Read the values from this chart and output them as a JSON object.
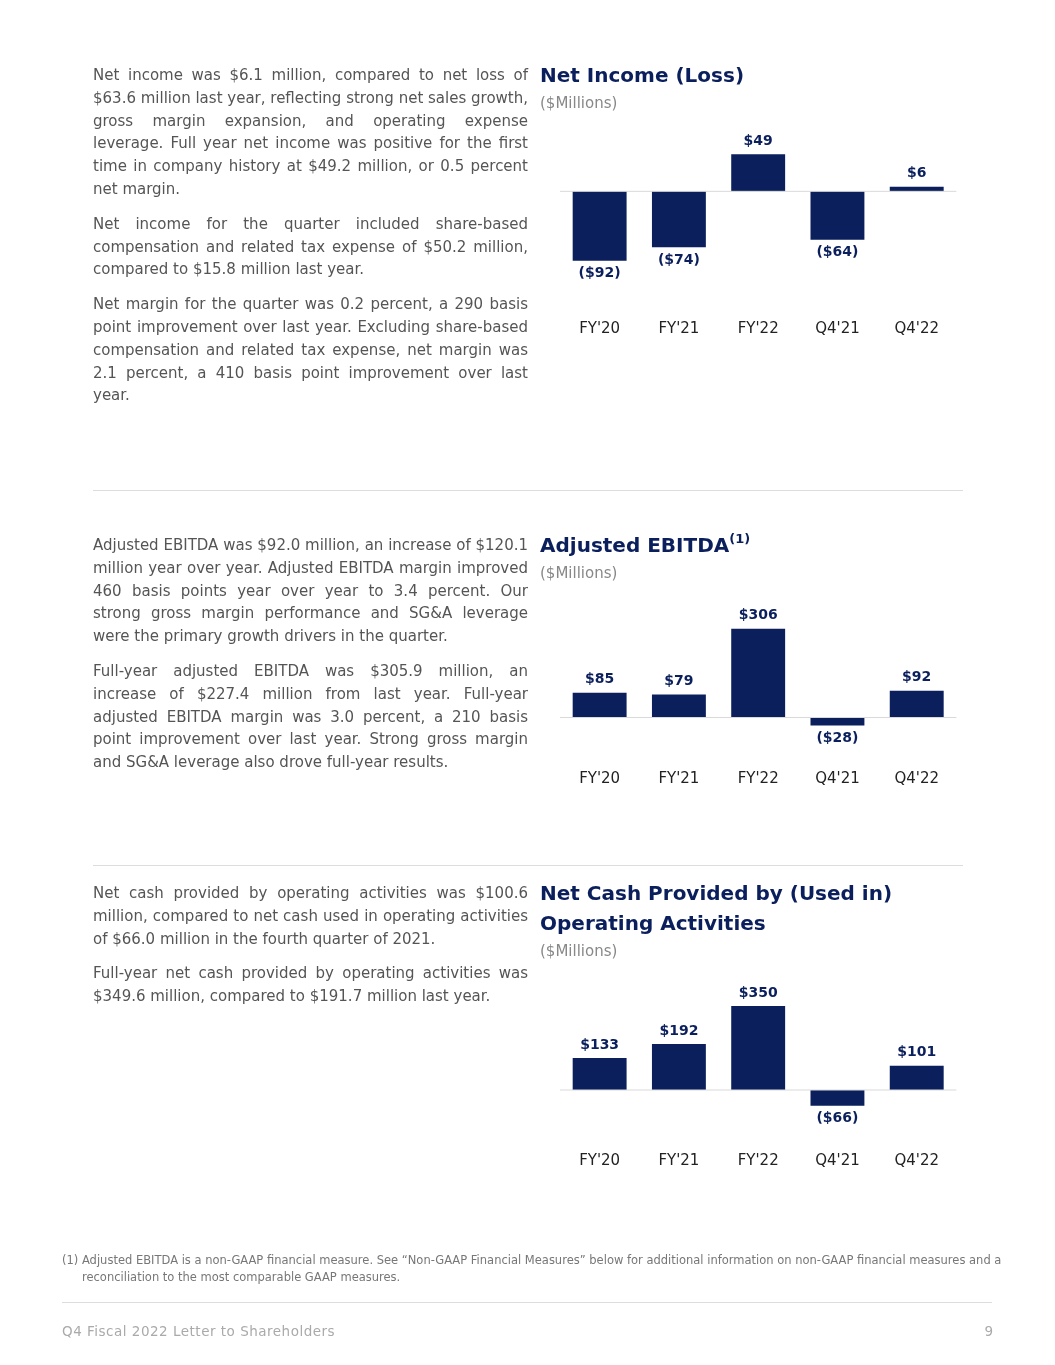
{
  "chart_data": [
    {
      "type": "bar",
      "title": "Net Income (Loss)",
      "subtitle": "($Millions)",
      "categories": [
        "FY'20",
        "FY'21",
        "FY'22",
        "Q4'21",
        "Q4'22"
      ],
      "values": [
        -92,
        -74,
        49,
        -64,
        6
      ],
      "color": "#0a1f5c",
      "value_labels": [
        "($92)",
        "($74)",
        "$49",
        "($64)",
        "$6"
      ],
      "annotations": [
        "Net income was $6.1 million, compared to net loss of $63.6 million last year, reflecting strong net sales growth, gross margin expansion, and operating expense leverage. Full year net income was positive for the first time in company history at $49.2 million, or 0.5 percent net margin.",
        "Net income for the quarter included share-based compensation and related tax expense of $50.2 million, compared to $15.8 million last year.",
        "Net margin for the quarter was 0.2 percent, a 290 basis point improvement over last year. Excluding share-based compensation and related tax expense, net margin was 2.1 percent, a 410 basis point improvement over last year."
      ]
    },
    {
      "type": "bar",
      "title": "Adjusted EBITDA$^{(1)}$",
      "subtitle": "($Millions)",
      "categories": [
        "FY'20",
        "FY'21",
        "FY'22",
        "Q4'21",
        "Q4'22"
      ],
      "values": [
        85,
        79,
        306,
        -28,
        92
      ],
      "color": "#0a1f5c",
      "value_labels": [
        "$85",
        "$79",
        "$306",
        "($28)",
        "$92"
      ],
      "annotations": [
        "Adjusted EBITDA was $92.0 million, an increase of $120.1 million year over year. Adjusted EBITDA margin improved 460 basis points year over year to 3.4 percent. Our strong gross margin performance and SG&A leverage were the primary growth drivers in the quarter.",
        "Full-year adjusted EBITDA was $305.9 million, an increase of $227.4 million from last year. Full-year adjusted EBITDA margin was 3.0 percent, a 210 basis point improvement over last year. Strong gross margin and SG&A leverage also drove full-year results."
      ]
    },
    {
      "type": "bar",
      "title": "Net Cash Provided by (Used in) Operating Activities",
      "subtitle": "($Millions)",
      "categories": [
        "FY'20",
        "FY'21",
        "FY'22",
        "Q4'21",
        "Q4'22"
      ],
      "values": [
        133,
        192,
        350,
        -66,
        101
      ],
      "color": "#0a1f5c",
      "value_labels": [
        "$133",
        "$192",
        "$350",
        "($66)",
        "$101"
      ],
      "annotations": [
        "Net cash provided by operating activities was $100.6 million, compared to net cash used in operating activities of $66.0 million in the fourth quarter of 2021.",
        "Full-year net cash provided by operating activities was $349.6 million, compared to $191.7 million last year."
      ]
    },
    {
      "type": "other",
      "annotations": [
        "(1) Adjusted EBITDA is a non-GAAP financial measure. See “Non-GAAP Financial Measures” below for additional information on non-GAAP financial measures and a reconciliation to the most comparable GAAP measures.",
        "Q4 Fiscal 2022 Letter to Shareholders",
        "9"
      ]
    }
  ]
}
